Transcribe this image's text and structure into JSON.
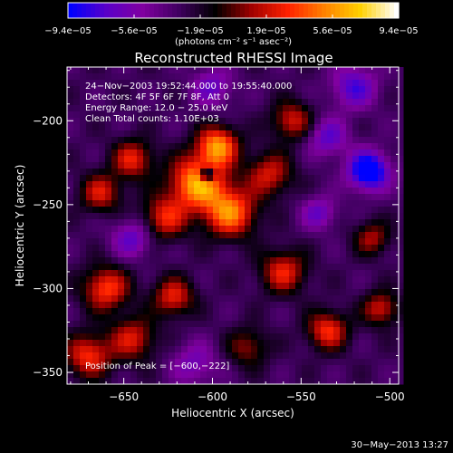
{
  "chart_data": {
    "type": "heatmap",
    "title": "Reconstructed RHESSI Image",
    "xlabel": "Heliocentric X (arcsec)",
    "ylabel": "Heliocentric Y (arcsec)",
    "xlim": [
      -682,
      -495
    ],
    "ylim": [
      -357,
      -168
    ],
    "x_ticks": [
      -650,
      -600,
      -550,
      -500
    ],
    "x_tick_labels": [
      "−650",
      "−600",
      "−550",
      "−500"
    ],
    "y_ticks": [
      -200,
      -250,
      -300,
      -350
    ],
    "y_tick_labels": [
      "−200",
      "−250",
      "−300",
      "−350"
    ],
    "colorbar": {
      "min": -9.4e-05,
      "max": 9.4e-05,
      "tick_labels": [
        "−9.4e−05",
        "−5.6e−05",
        "−1.9e−05",
        "1.9e−05",
        "5.6e−05",
        "9.4e−05"
      ],
      "units_label": "(photons cm⁻² s⁻¹ asec⁻²)",
      "colors": [
        "#0000ff",
        "#5a00c8",
        "#8000a0",
        "#400060",
        "#000000",
        "#a00000",
        "#ff2000",
        "#ff8000",
        "#ffd000",
        "#ffffff"
      ]
    },
    "annotations": [
      "24−Nov−2003 19:52:44.000 to 19:55:40.000",
      "Detectors: 4F 5F 6F 7F 8F, Att 0",
      "Energy Range: 12.0 − 25.0 keV",
      "Clean     Total counts: 1.10E+03"
    ],
    "peak_text": "Position of Peak = [−600,−222]",
    "peak_position": [
      -600,
      -222
    ],
    "sources": [
      {
        "x": -608,
        "y": -237,
        "sigma": 11,
        "amp": 1.0
      },
      {
        "x": -590,
        "y": -255,
        "sigma": 10,
        "amp": 0.85
      },
      {
        "x": -597,
        "y": -215,
        "sigma": 8,
        "amp": 0.9
      },
      {
        "x": -627,
        "y": -258,
        "sigma": 9,
        "amp": 0.6
      },
      {
        "x": -568,
        "y": -232,
        "sigma": 9,
        "amp": 0.55
      },
      {
        "x": -645,
        "y": -223,
        "sigma": 8,
        "amp": 0.6
      },
      {
        "x": -663,
        "y": -243,
        "sigma": 8,
        "amp": 0.55
      },
      {
        "x": -660,
        "y": -300,
        "sigma": 9,
        "amp": 0.7
      },
      {
        "x": -622,
        "y": -305,
        "sigma": 8,
        "amp": 0.6
      },
      {
        "x": -645,
        "y": -330,
        "sigma": 9,
        "amp": 0.55
      },
      {
        "x": -670,
        "y": -340,
        "sigma": 9,
        "amp": 0.65
      },
      {
        "x": -560,
        "y": -290,
        "sigma": 9,
        "amp": 0.6
      },
      {
        "x": -535,
        "y": -325,
        "sigma": 8,
        "amp": 0.65
      },
      {
        "x": -505,
        "y": -312,
        "sigma": 7,
        "amp": 0.55
      },
      {
        "x": -555,
        "y": -200,
        "sigma": 8,
        "amp": 0.55
      },
      {
        "x": -510,
        "y": -270,
        "sigma": 7,
        "amp": 0.45
      },
      {
        "x": -580,
        "y": -335,
        "sigma": 8,
        "amp": 0.4
      },
      {
        "x": -512,
        "y": -230,
        "sigma": 8,
        "amp": -0.9
      },
      {
        "x": -535,
        "y": -210,
        "sigma": 8,
        "amp": -0.45
      },
      {
        "x": -520,
        "y": -180,
        "sigma": 9,
        "amp": -0.5
      },
      {
        "x": -645,
        "y": -270,
        "sigma": 8,
        "amp": -0.45
      },
      {
        "x": -600,
        "y": -180,
        "sigma": 8,
        "amp": -0.4
      },
      {
        "x": -610,
        "y": -345,
        "sigma": 9,
        "amp": -0.35
      },
      {
        "x": -540,
        "y": -255,
        "sigma": 7,
        "amp": -0.4
      },
      {
        "x": -603,
        "y": -232,
        "sigma": 3,
        "amp": -0.9
      }
    ],
    "background_level": -0.32
  },
  "footer": {
    "date_stamp": "30−May−2013 13:27"
  }
}
